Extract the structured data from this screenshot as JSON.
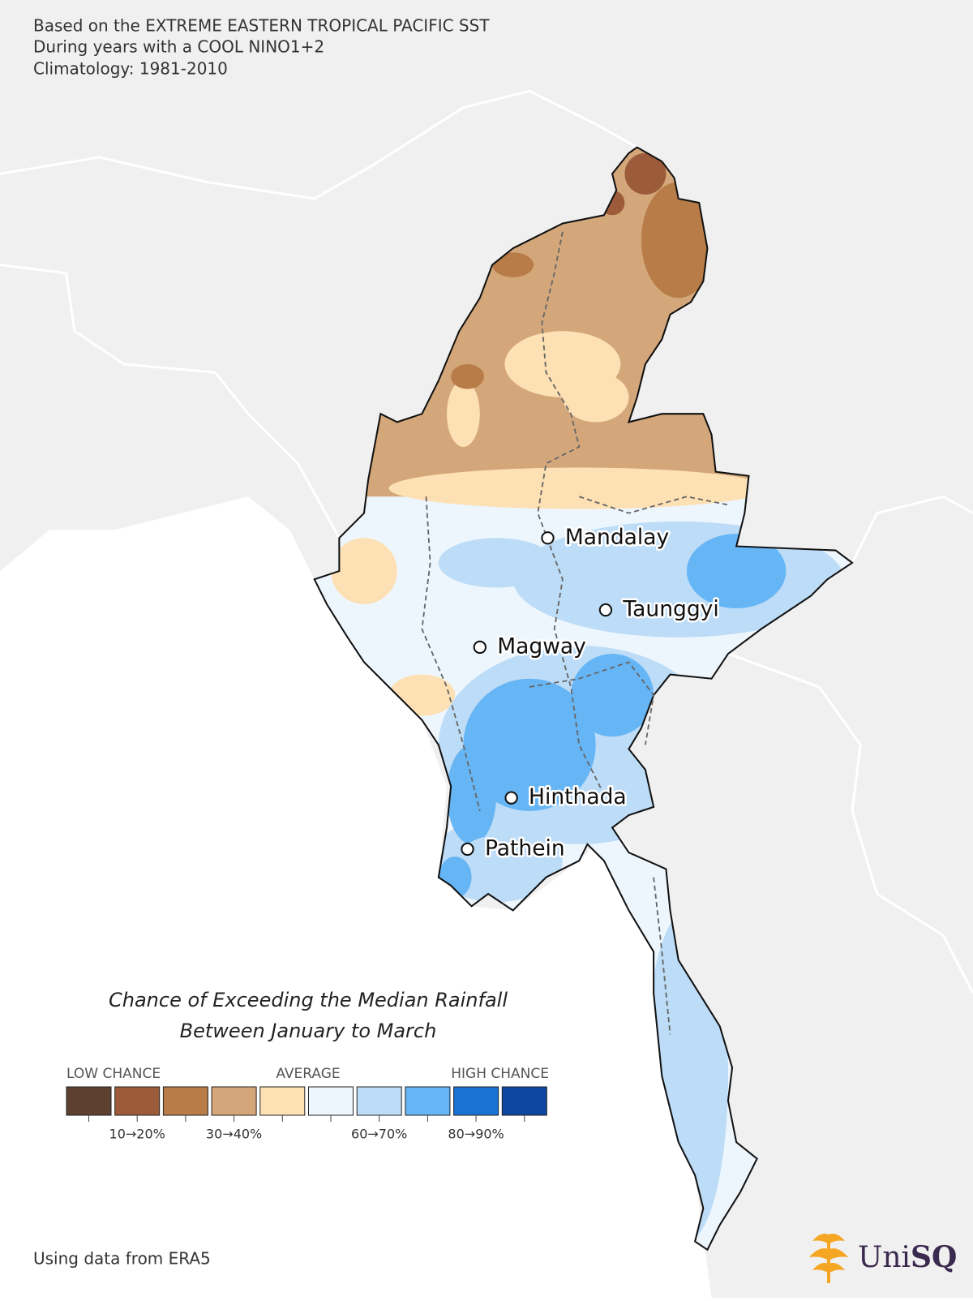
{
  "header": {
    "lines": [
      "Based on the EXTREME EASTERN TROPICAL PACIFIC SST",
      "During years with a COOL NINO1+2",
      "Climatology: 1981-2010"
    ]
  },
  "cities": [
    "Mandalay",
    "Taunggyi",
    "Magway",
    "Hinthada",
    "Pathein"
  ],
  "legend": {
    "title": [
      "Chance of Exceeding the Median Rainfall",
      "Between January to March"
    ],
    "low": "LOW CHANCE",
    "average": "AVERAGE",
    "high": "HIGH CHANCE",
    "colors": [
      "#5e4030",
      "#9c5b3a",
      "#b87c48",
      "#d4a77a",
      "#fde0b4",
      "#eef6fd",
      "#bcdcf7",
      "#66b5f5",
      "#1a73d4",
      "#0d47a1"
    ],
    "tick_labels": [
      "10→20%",
      "30→40%",
      "60→70%",
      "80→90%"
    ]
  },
  "footer": "Using data from ERA5",
  "logo": {
    "uni": "Uni",
    "sq": "SQ"
  }
}
